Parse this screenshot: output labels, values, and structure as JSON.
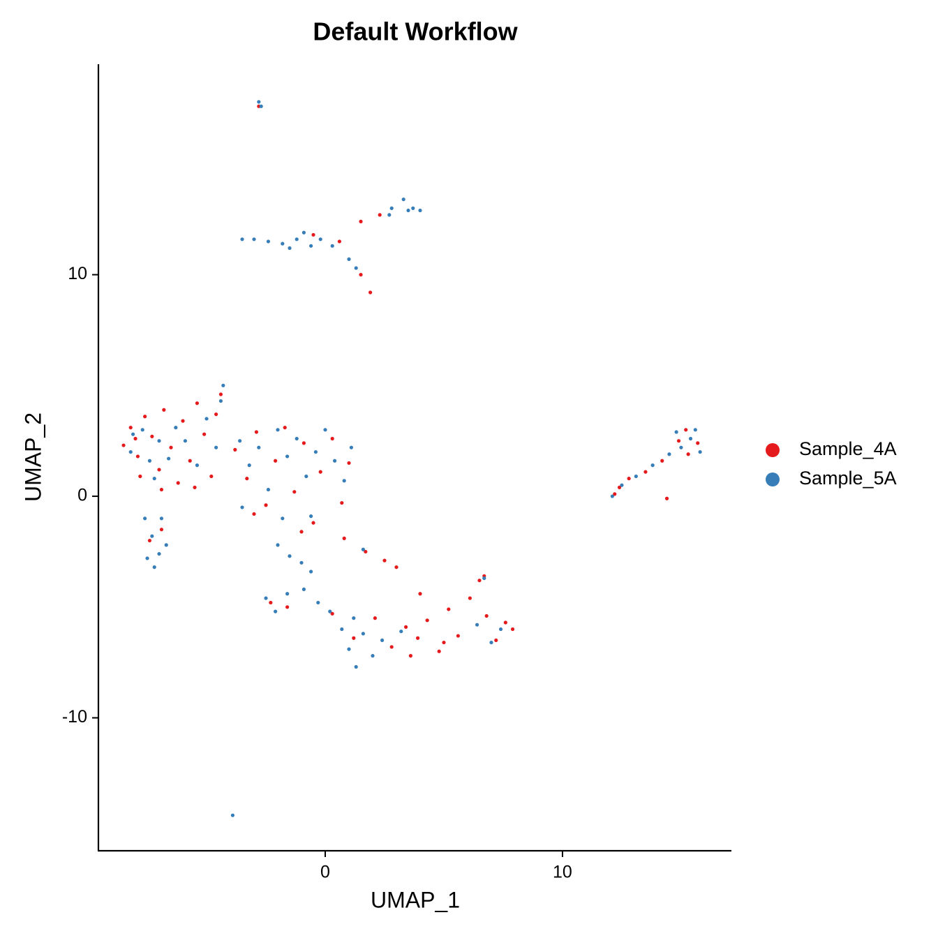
{
  "chart_data": {
    "type": "scatter",
    "title": "Default Workflow",
    "x_label": "UMAP_1",
    "y_label": "UMAP_2",
    "xlim": [
      -9.56,
      17.12
    ],
    "ylim": [
      -16.0,
      19.5
    ],
    "xticks": [
      0,
      10
    ],
    "yticks": [
      -10,
      0,
      10
    ],
    "grid": false,
    "legend": "right",
    "series": [
      {
        "name": "Sample_4A",
        "color": "#E41A1C",
        "x": [
          -8.5,
          -8.2,
          -7.9,
          -7.6,
          -7.3,
          -7.0,
          -6.8,
          -6.5,
          -6.2,
          -6.0,
          -5.7,
          -5.4,
          -5.1,
          -4.8,
          -4.6,
          -4.4,
          -7.8,
          -6.9,
          -5.5,
          -8.0,
          -3.8,
          -3.3,
          -2.9,
          -2.5,
          -2.1,
          -1.7,
          -1.3,
          -0.9,
          -0.5,
          -0.2,
          0.3,
          0.7,
          1.0,
          -1.0,
          -3.0,
          0.8,
          1.7,
          2.5,
          3.0,
          -2.3,
          -1.6,
          0.3,
          1.2,
          2.1,
          2.8,
          3.4,
          3.9,
          4.3,
          4.8,
          5.2,
          5.6,
          6.1,
          6.5,
          6.8,
          7.2,
          7.6,
          7.9,
          3.6,
          4.0,
          6.7,
          5.0,
          -7.4,
          -6.9,
          1.5,
          2.3,
          0.6,
          1.5,
          1.9,
          -0.5,
          -2.8,
          12.2,
          12.8,
          13.5,
          14.2,
          14.4,
          14.9,
          15.3,
          15.7,
          15.2,
          12.4
        ],
        "values": [
          2.3,
          3.1,
          1.8,
          3.6,
          2.7,
          1.2,
          3.9,
          2.2,
          0.6,
          3.4,
          1.6,
          4.2,
          2.8,
          0.9,
          3.7,
          4.6,
          0.9,
          0.3,
          0.4,
          2.6,
          2.1,
          0.8,
          2.9,
          -0.4,
          1.6,
          3.1,
          0.2,
          2.4,
          -1.2,
          1.1,
          2.6,
          -0.3,
          1.5,
          -1.6,
          -0.8,
          -1.9,
          -2.5,
          -2.9,
          -3.2,
          -4.8,
          -5.0,
          -5.3,
          -6.4,
          -5.5,
          -6.8,
          -5.9,
          -6.4,
          -5.6,
          -7.0,
          -5.1,
          -6.3,
          -4.6,
          -3.8,
          -5.4,
          -6.5,
          -5.7,
          -6.0,
          -7.2,
          -4.4,
          -3.6,
          -6.6,
          -2.0,
          -1.5,
          12.4,
          12.7,
          11.5,
          10.0,
          9.2,
          11.8,
          17.6,
          0.1,
          0.8,
          1.1,
          1.6,
          -0.1,
          2.5,
          1.9,
          2.4,
          3.0,
          0.4
        ]
      },
      {
        "name": "Sample_5A",
        "color": "#377EB8",
        "x": [
          -2.8,
          -2.7,
          2.8,
          3.3,
          3.7,
          4.0,
          2.7,
          3.5,
          -3.5,
          -3.0,
          -2.4,
          -1.8,
          -1.2,
          -0.6,
          -0.2,
          0.3,
          -1.5,
          -0.9,
          1.0,
          1.3,
          -8.2,
          -7.7,
          -7.4,
          -7.0,
          -6.6,
          -6.3,
          -5.9,
          -5.4,
          -5.0,
          -4.6,
          -4.3,
          -4.4,
          -8.1,
          -7.2,
          -3.6,
          -3.2,
          -2.8,
          -2.4,
          -2.0,
          -1.6,
          -1.2,
          -0.8,
          -0.4,
          0.0,
          0.4,
          0.8,
          1.1,
          -0.6,
          -1.8,
          -3.5,
          -2.0,
          -1.5,
          -1.0,
          -0.6,
          1.6,
          -7.6,
          -7.3,
          -7.0,
          -7.5,
          -6.9,
          -7.2,
          -6.7,
          -2.5,
          -2.1,
          -1.6,
          -0.9,
          -0.3,
          0.2,
          0.7,
          1.0,
          1.3,
          1.6,
          2.0,
          2.4,
          1.2,
          3.2,
          6.4,
          7.0,
          7.4,
          6.7,
          12.1,
          12.5,
          13.1,
          13.8,
          14.5,
          15.0,
          15.4,
          15.8,
          14.8,
          15.6,
          -3.9
        ],
        "values": [
          17.8,
          17.6,
          13.0,
          13.4,
          13.0,
          12.9,
          12.7,
          12.9,
          11.6,
          11.6,
          11.5,
          11.4,
          11.6,
          11.3,
          11.6,
          11.3,
          11.2,
          11.9,
          10.7,
          10.3,
          2.0,
          3.0,
          1.6,
          2.5,
          1.7,
          3.1,
          2.5,
          1.4,
          3.5,
          2.2,
          5.0,
          4.3,
          2.8,
          0.8,
          2.5,
          1.4,
          2.2,
          0.3,
          3.0,
          1.8,
          2.6,
          0.9,
          2.0,
          3.0,
          1.6,
          0.7,
          2.2,
          -0.9,
          -1.0,
          -0.5,
          -2.2,
          -2.7,
          -3.0,
          -3.4,
          -2.4,
          -1.0,
          -1.8,
          -2.6,
          -2.8,
          -1.0,
          -3.2,
          -2.2,
          -4.6,
          -5.2,
          -4.4,
          -4.2,
          -4.8,
          -5.2,
          -6.0,
          -6.9,
          -7.7,
          -6.2,
          -7.2,
          -6.5,
          -5.5,
          -6.1,
          -5.8,
          -6.6,
          -6.0,
          -3.7,
          0.0,
          0.5,
          0.9,
          1.4,
          1.9,
          2.2,
          2.6,
          2.0,
          2.9,
          3.0,
          -14.4
        ]
      }
    ]
  }
}
